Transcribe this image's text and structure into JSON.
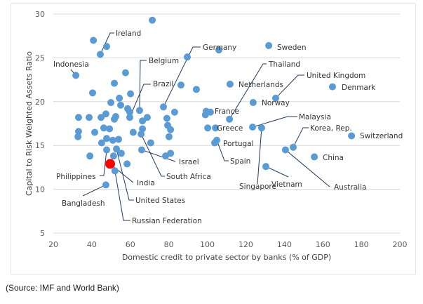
{
  "chart_data": {
    "type": "scatter",
    "xlabel": "Domestic credit to private sector by banks (% of GDP)",
    "ylabel": "Capital to Risk Weighted Assets Ratio",
    "xlim": [
      20,
      200
    ],
    "ylim": [
      5,
      30
    ],
    "xticks": [
      20,
      40,
      60,
      80,
      100,
      120,
      140,
      160,
      180,
      200
    ],
    "yticks": [
      5,
      10,
      15,
      20,
      25,
      30
    ],
    "grid": "horizontal",
    "colors": {
      "points": "#5b9bd5",
      "highlight": "#ff0000",
      "grid": "#d9d9d9"
    },
    "highlight": "India",
    "points": [
      {
        "x": 71.4,
        "y": 29.3
      },
      {
        "x": 40.8,
        "y": 27.0
      },
      {
        "x": 47.7,
        "y": 26.3
      },
      {
        "x": 44.4,
        "y": 25.4,
        "label": "Ireland"
      },
      {
        "x": 89.6,
        "y": 25.1
      },
      {
        "x": 31.7,
        "y": 23.0,
        "label": "Indonesia"
      },
      {
        "x": 57.5,
        "y": 23.3
      },
      {
        "x": 51.7,
        "y": 22.1
      },
      {
        "x": 86.3,
        "y": 21.9
      },
      {
        "x": 94.3,
        "y": 21.4
      },
      {
        "x": 40.4,
        "y": 21.0
      },
      {
        "x": 54.3,
        "y": 20.4
      },
      {
        "x": 60.1,
        "y": 20.9
      },
      {
        "x": 49.9,
        "y": 19.9
      },
      {
        "x": 55.0,
        "y": 19.6
      },
      {
        "x": 58.6,
        "y": 19.2
      },
      {
        "x": 59.7,
        "y": 18.8
      },
      {
        "x": 64.8,
        "y": 19.0,
        "label": "Belgium"
      },
      {
        "x": 33.1,
        "y": 18.2
      },
      {
        "x": 38.6,
        "y": 18.2
      },
      {
        "x": 44.8,
        "y": 18.2
      },
      {
        "x": 47.3,
        "y": 18.6
      },
      {
        "x": 52.4,
        "y": 18.3
      },
      {
        "x": 51.7,
        "y": 18.0
      },
      {
        "x": 59.7,
        "y": 18.2,
        "label": "Brazil"
      },
      {
        "x": 66.3,
        "y": 17.8
      },
      {
        "x": 68.8,
        "y": 18.2
      },
      {
        "x": 77.2,
        "y": 19.4,
        "label": "Germany"
      },
      {
        "x": 79.0,
        "y": 18.1
      },
      {
        "x": 83.0,
        "y": 18.8
      },
      {
        "x": 79.4,
        "y": 17.3
      },
      {
        "x": 80.9,
        "y": 16.8
      },
      {
        "x": 80.1,
        "y": 16.0
      },
      {
        "x": 66.3,
        "y": 16.9
      },
      {
        "x": 65.6,
        "y": 16.3,
        "label": "South Africa"
      },
      {
        "x": 61.5,
        "y": 16.5
      },
      {
        "x": 33.1,
        "y": 16.6
      },
      {
        "x": 32.8,
        "y": 16.0
      },
      {
        "x": 41.5,
        "y": 16.5
      },
      {
        "x": 46.2,
        "y": 17.0
      },
      {
        "x": 49.2,
        "y": 16.9
      },
      {
        "x": 47.7,
        "y": 15.8
      },
      {
        "x": 50.9,
        "y": 15.6
      },
      {
        "x": 53.9,
        "y": 15.7
      },
      {
        "x": 45.1,
        "y": 15.3
      },
      {
        "x": 70.6,
        "y": 15.3
      },
      {
        "x": 47.7,
        "y": 14.5,
        "label": "Philippines"
      },
      {
        "x": 52.8,
        "y": 14.6,
        "label": "United States"
      },
      {
        "x": 55.3,
        "y": 14.1
      },
      {
        "x": 39.0,
        "y": 13.8
      },
      {
        "x": 51.3,
        "y": 13.8
      },
      {
        "x": 65.9,
        "y": 14.5,
        "label": "Israel"
      },
      {
        "x": 78.3,
        "y": 13.8
      },
      {
        "x": 80.9,
        "y": 14.1
      },
      {
        "x": 49.5,
        "y": 12.9,
        "label": "India"
      },
      {
        "x": 58.3,
        "y": 12.9
      },
      {
        "x": 52.0,
        "y": 12.1,
        "label": "Russian Federation"
      },
      {
        "x": 47.3,
        "y": 10.5,
        "label": "Bangladesh"
      },
      {
        "x": 106.0,
        "y": 25.9
      },
      {
        "x": 131.9,
        "y": 26.4,
        "label": "Sweden"
      },
      {
        "x": 111.8,
        "y": 22.0,
        "label": "Netherlands"
      },
      {
        "x": 165.0,
        "y": 21.7,
        "label": "Denmark"
      },
      {
        "x": 135.5,
        "y": 20.4,
        "label": "United Kingdom"
      },
      {
        "x": 123.8,
        "y": 19.9,
        "label": "Norway"
      },
      {
        "x": 99.4,
        "y": 18.9
      },
      {
        "x": 101.6,
        "y": 18.8,
        "label": "France"
      },
      {
        "x": 99.0,
        "y": 18.5
      },
      {
        "x": 111.5,
        "y": 18.0,
        "label": "Thailand"
      },
      {
        "x": 100.2,
        "y": 17.0
      },
      {
        "x": 104.2,
        "y": 17.0,
        "label": "Greece"
      },
      {
        "x": 123.5,
        "y": 17.1,
        "label": "Malaysia"
      },
      {
        "x": 128.2,
        "y": 17.0,
        "label": "Singapore"
      },
      {
        "x": 174.9,
        "y": 16.1,
        "label": "Switzerland"
      },
      {
        "x": 104.9,
        "y": 15.6,
        "label": "Spain"
      },
      {
        "x": 103.8,
        "y": 15.3,
        "label": "Portugal"
      },
      {
        "x": 144.6,
        "y": 14.8,
        "label": "Korea, Rep."
      },
      {
        "x": 140.6,
        "y": 14.5,
        "label": "Australia"
      },
      {
        "x": 155.6,
        "y": 13.7,
        "label": "China"
      },
      {
        "x": 130.4,
        "y": 12.6,
        "label": "Vietnam"
      }
    ]
  },
  "source": "(Source: IMF and World Bank)"
}
